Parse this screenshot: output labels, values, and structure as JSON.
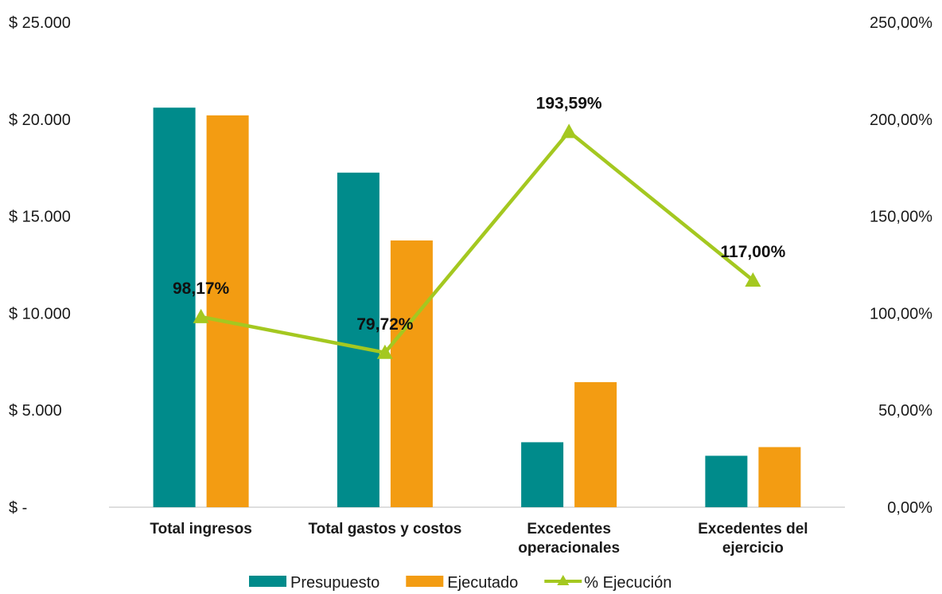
{
  "chart_data": {
    "type": "bar",
    "categories": [
      [
        "Total ingresos"
      ],
      [
        "Total gastos y costos"
      ],
      [
        "Excedentes",
        "operacionales"
      ],
      [
        "Excedentes del",
        "ejercicio"
      ]
    ],
    "series": [
      {
        "name": "Presupuesto",
        "kind": "bar",
        "axis": "left",
        "color": "#008b8b",
        "values": [
          20600,
          17250,
          3350,
          2650
        ]
      },
      {
        "name": "Ejecutado",
        "kind": "bar",
        "axis": "left",
        "color": "#f39c12",
        "values": [
          20200,
          13750,
          6450,
          3100
        ]
      },
      {
        "name": "% Ejecución",
        "kind": "line",
        "axis": "right",
        "color": "#a4c820",
        "marker": "triangle",
        "values": [
          98.17,
          79.72,
          193.59,
          117.0
        ],
        "labels": [
          "98,17%",
          "79,72%",
          "193,59%",
          "117,00%"
        ]
      }
    ],
    "left_axis": {
      "ylim": [
        0,
        25000
      ],
      "ticks": [
        0,
        5000,
        10000,
        15000,
        20000,
        25000
      ],
      "tick_labels": [
        "$ -",
        "$ 5.000",
        "$ 10.000",
        "$ 15.000",
        "$ 20.000",
        "$ 25.000"
      ]
    },
    "right_axis": {
      "ylim": [
        0,
        250
      ],
      "ticks": [
        0,
        50,
        100,
        150,
        200,
        250
      ],
      "tick_labels": [
        "0,00%",
        "50,00%",
        "100,00%",
        "150,00%",
        "200,00%",
        "250,00%"
      ]
    },
    "title": "",
    "xlabel": "",
    "ylabel": "",
    "grid": false,
    "legend": "bottom"
  }
}
